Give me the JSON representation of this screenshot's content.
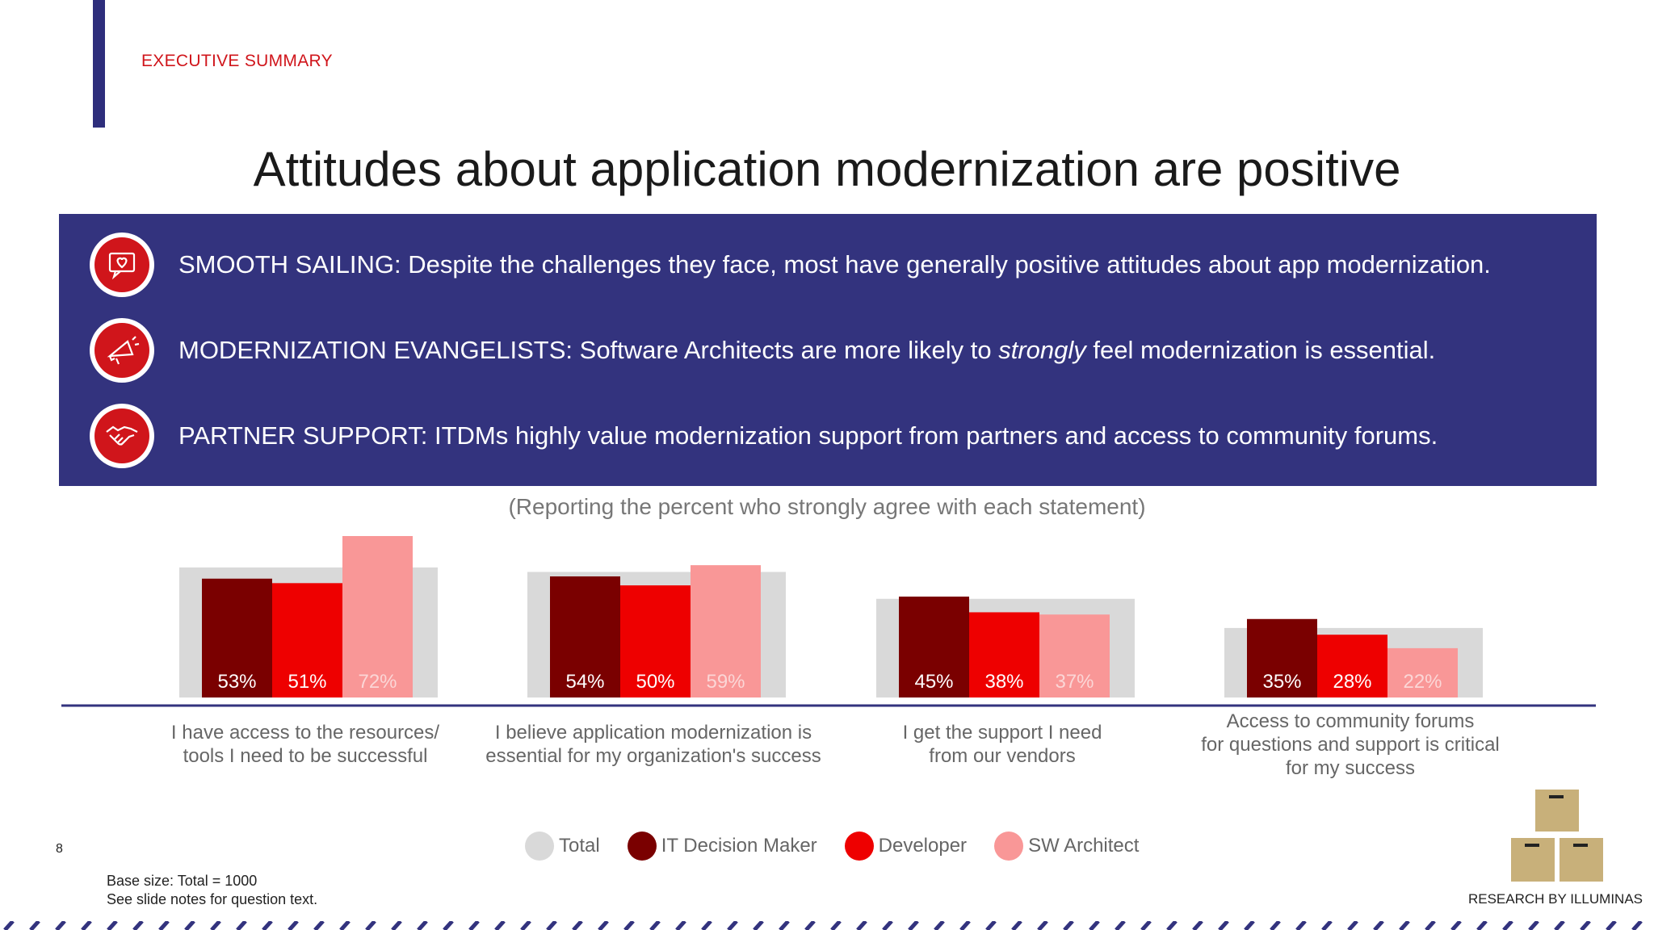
{
  "header": {
    "section_label": "EXECUTIVE SUMMARY"
  },
  "title": "Attitudes about application modernization are positive",
  "banner": {
    "rows": [
      {
        "icon": "heart-speech-bubble-icon",
        "text": "SMOOTH SAILING: Despite the challenges they face, most have generally positive attitudes about app modernization."
      },
      {
        "icon": "megaphone-icon",
        "text_before": "MODERNIZATION EVANGELISTS: Software Architects are more likely to ",
        "emphasis": "strongly",
        "text_after": " feel modernization is essential."
      },
      {
        "icon": "handshake-icon",
        "text": "PARTNER SUPPORT: ITDMs highly value modernization support from partners and access to community forums."
      }
    ]
  },
  "chart_caption": "(Reporting the percent who strongly agree with each statement)",
  "chart_data": {
    "type": "bar",
    "categories": [
      "I have access to the resources/ tools I need to be successful",
      "I believe application modernization is essential for my organization's success",
      "I get the support I need from our vendors",
      "Access to community forums for questions and support is critical for my success"
    ],
    "category_lines": [
      [
        "I have access to the resources/",
        "tools I need to be successful"
      ],
      [
        "I believe application modernization is",
        "essential for my organization's success"
      ],
      [
        "I get the support I need",
        "from our vendors"
      ],
      [
        "Access to community forums",
        "for questions and support is critical",
        "for my success"
      ]
    ],
    "series": [
      {
        "name": "Total",
        "color": "#d9d9d9",
        "values": [
          58,
          56,
          44,
          31
        ]
      },
      {
        "name": "IT Decision Maker",
        "color": "#7a0000",
        "values": [
          53,
          54,
          45,
          35
        ]
      },
      {
        "name": "Developer",
        "color": "#ee0000",
        "values": [
          51,
          50,
          38,
          28
        ]
      },
      {
        "name": "SW Architect",
        "color": "#f99797",
        "values": [
          72,
          59,
          37,
          22
        ]
      }
    ],
    "data_labels": [
      [
        "53%",
        "51%",
        "72%"
      ],
      [
        "54%",
        "50%",
        "59%"
      ],
      [
        "45%",
        "38%",
        "37%"
      ],
      [
        "35%",
        "28%",
        "22%"
      ]
    ],
    "ylim": [
      0,
      75
    ],
    "legend_placement": "bottom",
    "grid": false
  },
  "footer": {
    "page_number": "8",
    "base_size": "Base size: Total = 1000",
    "notes": "See slide notes for question text.",
    "credit": "RESEARCH BY ILLUMINAS"
  },
  "colors": {
    "accent_navy": "#33337e",
    "brand_red": "#d0151b"
  }
}
